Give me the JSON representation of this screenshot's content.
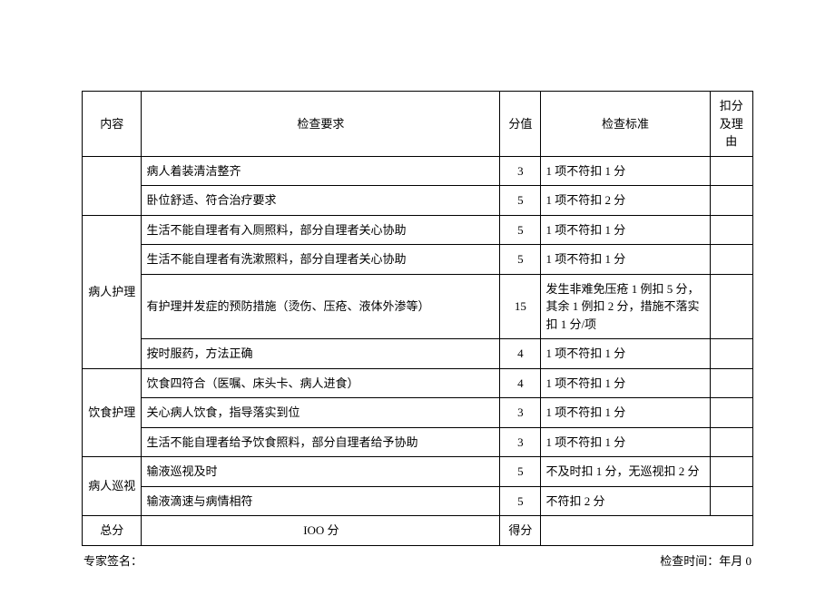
{
  "headers": {
    "category": "内容",
    "requirement": "检查要求",
    "score": "分值",
    "standard": "检查标准",
    "deduct": "扣分及理由"
  },
  "groups": [
    {
      "name": "",
      "rows": [
        {
          "req": "病人着装清洁整齐",
          "score": "3",
          "standard": "1 项不符扣 1 分"
        },
        {
          "req": "卧位舒适、符合治疗要求",
          "score": "5",
          "standard": "1 项不符扣 2 分"
        }
      ]
    },
    {
      "name": "病人护理",
      "rows": [
        {
          "req": "生活不能自理者有入厕照料，部分自理者关心协助",
          "score": "5",
          "standard": "1 项不符扣 1 分"
        },
        {
          "req": "生活不能自理者有洗漱照料，部分自理者关心协助",
          "score": "5",
          "standard": "1 项不符扣 1 分"
        },
        {
          "req": "有护理并发症的预防措施（烫伤、压疮、液体外渗等）",
          "score": "15",
          "standard": "发生非难免压疮 1 例扣 5 分，其余 1 例扣 2 分，措施不落实扣 1 分/项"
        },
        {
          "req": "按时服药，方法正确",
          "score": "4",
          "standard": "1 项不符扣 1 分"
        }
      ]
    },
    {
      "name": "饮食护理",
      "rows": [
        {
          "req": "饮食四符合（医嘱、床头卡、病人进食）",
          "score": "4",
          "standard": "1 项不符扣 1 分"
        },
        {
          "req": "关心病人饮食，指导落实到位",
          "score": "3",
          "standard": "1 项不符扣 1 分"
        },
        {
          "req": "生活不能自理者给予饮食照料，部分自理者给予协助",
          "score": "3",
          "standard": "1 项不符扣 1 分"
        }
      ]
    },
    {
      "name": "病人巡视",
      "rows": [
        {
          "req": "输液巡视及时",
          "score": "5",
          "standard": "不及时扣 1 分，无巡视扣 2 分"
        },
        {
          "req": "输液滴速与病情相符",
          "score": "5",
          "standard": "不符扣 2 分"
        }
      ]
    }
  ],
  "totalRow": {
    "label": "总分",
    "value": "IOO 分",
    "scoreLabel": "得分"
  },
  "footer": {
    "signLabel": "专家签名：",
    "timeLabel": "检查时间：年月 0"
  }
}
